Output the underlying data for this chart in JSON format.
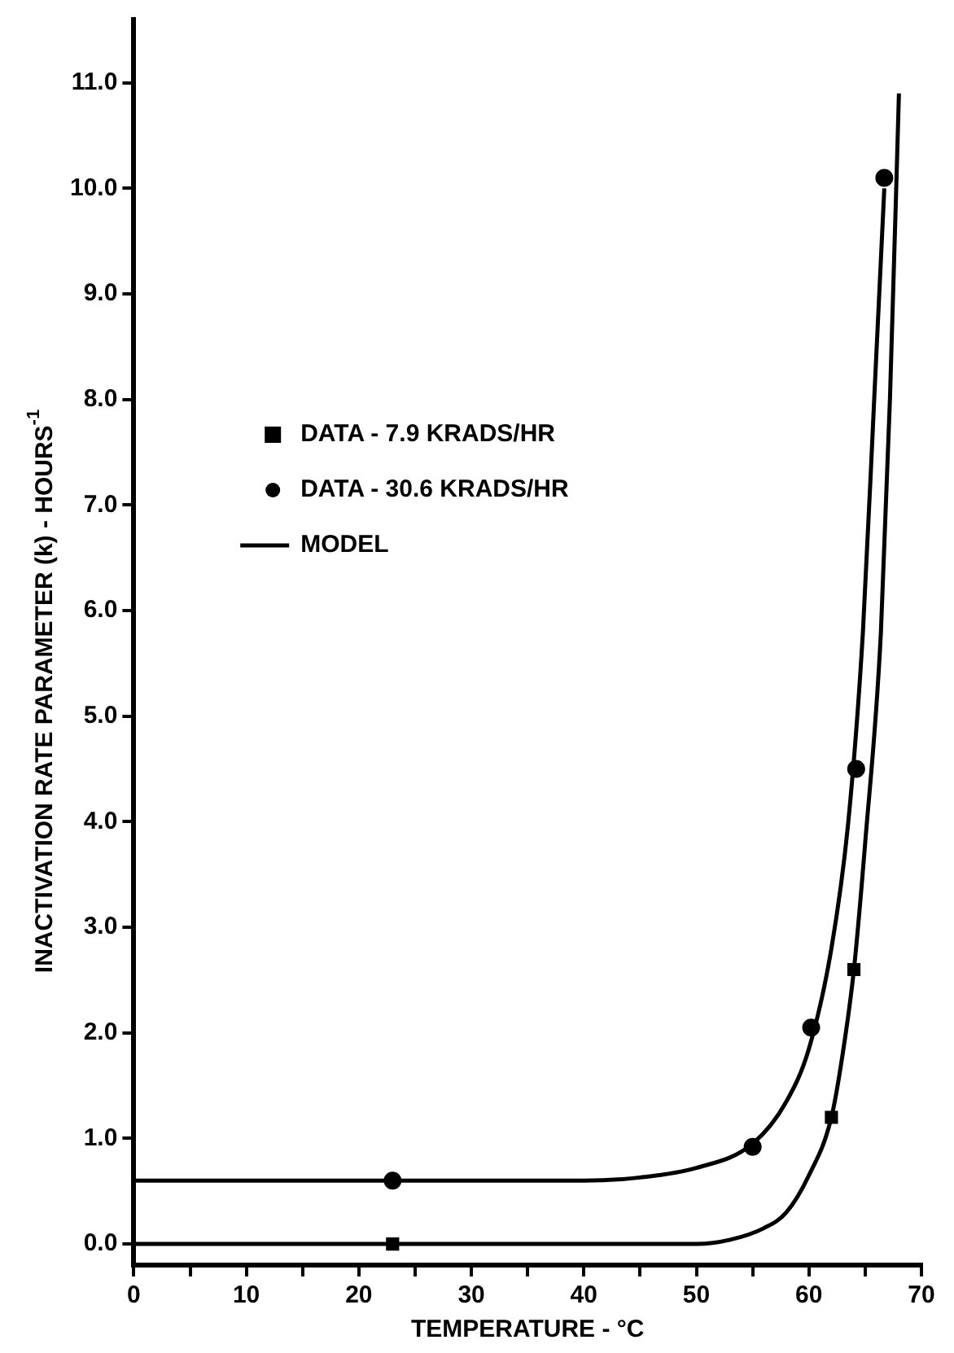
{
  "chart_data": {
    "type": "scatter",
    "xlabel": "TEMPERATURE - °C",
    "ylabel": "INACTIVATION RATE PARAMETER (k) - HOURS$^{-1}$",
    "xlim": [
      0,
      70
    ],
    "ylim": [
      -0.2,
      11.6
    ],
    "xticks": [
      0,
      {
        "value": 5,
        "label": null
      },
      10,
      {
        "value": 15,
        "label": null
      },
      20,
      {
        "value": 25,
        "label": null
      },
      30,
      {
        "value": 35,
        "label": null
      },
      40,
      {
        "value": 45,
        "label": null
      },
      50,
      {
        "value": 55,
        "label": null
      },
      60,
      {
        "value": 65,
        "label": null
      },
      70
    ],
    "yticks": [
      {
        "value": 0,
        "label": "0.0"
      },
      {
        "value": 1,
        "label": "1.0"
      },
      {
        "value": 2,
        "label": "2.0"
      },
      {
        "value": 3,
        "label": "3.0"
      },
      {
        "value": 4,
        "label": "4.0"
      },
      {
        "value": 5,
        "label": "5.0"
      },
      {
        "value": 6,
        "label": "6.0"
      },
      {
        "value": 7,
        "label": "7.0"
      },
      {
        "value": 8,
        "label": "8.0"
      },
      {
        "value": 9,
        "label": "9.0"
      },
      {
        "value": 10,
        "label": "10.0"
      },
      {
        "value": 11,
        "label": "11.0"
      }
    ],
    "grid": false,
    "legend": "left",
    "series": [
      {
        "name": "DATA - 7.9 KRADS/HR",
        "type": "scatter",
        "marker": "square",
        "color": "#000000",
        "x": [
          23,
          62,
          64
        ],
        "values": [
          0.0,
          1.2,
          2.6
        ]
      },
      {
        "name": "DATA - 30.6 KRADS/HR",
        "type": "scatter",
        "marker": "circle",
        "color": "#000000",
        "x": [
          23,
          55,
          60.2,
          64.2,
          66.7
        ],
        "values": [
          0.6,
          0.92,
          2.05,
          4.5,
          10.1
        ]
      },
      {
        "name": "MODEL",
        "type": "line",
        "line_style": "solid",
        "color": "#000000",
        "x": [
          0,
          40,
          45,
          50,
          55,
          58,
          60,
          62,
          63.5,
          64.8,
          65.8,
          66.7
        ],
        "values": [
          0.6,
          0.6,
          0.63,
          0.72,
          0.95,
          1.35,
          1.85,
          2.8,
          4.0,
          5.8,
          8.0,
          10.0
        ]
      },
      {
        "type": "line",
        "line_style": "solid",
        "color": "#000000",
        "x": [
          0,
          50,
          53,
          56,
          58,
          60,
          62,
          63,
          64,
          65,
          66.4,
          67.2,
          68
        ],
        "values": [
          0,
          0,
          0.04,
          0.15,
          0.3,
          0.65,
          1.2,
          1.8,
          2.6,
          3.8,
          5.8,
          8.0,
          10.9
        ]
      }
    ]
  }
}
